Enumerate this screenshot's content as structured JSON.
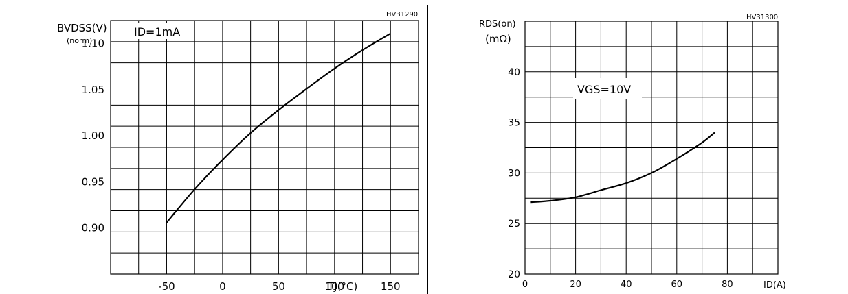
{
  "charts": [
    {
      "code": "HV31290",
      "ylabel_main": "BVDSS(V)",
      "ylabel_sub": "(norm)",
      "condition": "ID=1mA",
      "xlabel": "TJ(°C)",
      "xticks": [
        "-50",
        "0",
        "50",
        "100",
        "150"
      ],
      "yticks": [
        "0.90",
        "0.95",
        "1.00",
        "1.05",
        "1.10"
      ]
    },
    {
      "code": "HV31300",
      "ylabel_main": "RDS(on)",
      "ylabel_sub": "(mΩ)",
      "condition": "VGS=10V",
      "xlabel": "ID(A)",
      "xticks": [
        "0",
        "20",
        "40",
        "60",
        "80"
      ],
      "yticks": [
        "20",
        "25",
        "30",
        "35",
        "40"
      ]
    }
  ],
  "chart_data": [
    {
      "type": "line",
      "title": "",
      "xlabel": "TJ(°C)",
      "ylabel": "BVDSS(V) (norm)",
      "xlim": [
        -100,
        175
      ],
      "ylim": [
        0.85,
        1.125
      ],
      "grid": true,
      "series": [
        {
          "x": [
            -50,
            -25,
            0,
            25,
            50,
            75,
            100,
            125,
            150
          ],
          "y": [
            0.906,
            0.942,
            0.974,
            1.003,
            1.028,
            1.051,
            1.073,
            1.093,
            1.111
          ]
        }
      ]
    },
    {
      "type": "line",
      "title": "",
      "xlabel": "ID(A)",
      "ylabel": "RDS(on) (mΩ)",
      "xlim": [
        0,
        100
      ],
      "ylim": [
        20,
        45
      ],
      "grid": true,
      "series": [
        {
          "x": [
            2,
            10,
            20,
            30,
            40,
            50,
            60,
            70,
            75
          ],
          "y": [
            27.1,
            27.25,
            27.6,
            28.3,
            29.0,
            30.0,
            31.4,
            33.0,
            34.0
          ]
        }
      ]
    }
  ]
}
